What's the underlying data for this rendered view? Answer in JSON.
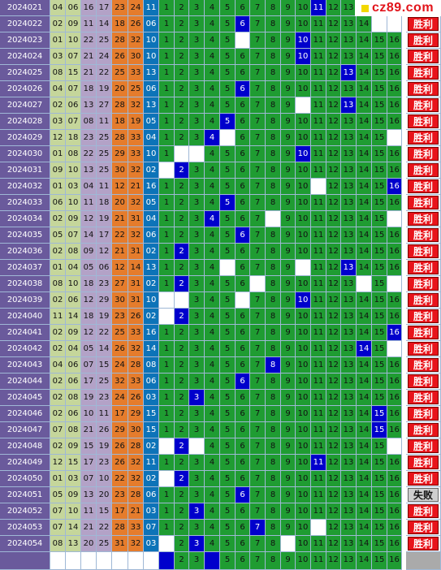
{
  "colors": {
    "period_bg": "#6a5a9c",
    "red_col_green": "#c5d69b",
    "red_col_purple": "#b3a2c7",
    "red_col_orange": "#e57c2c",
    "blue_col": "#0d73b8",
    "grid_green": "#1f9c32",
    "hit_blue": "#0000cc",
    "win_red": "#e8141b",
    "logo_red": "#e2141b"
  },
  "logo": {
    "text": "cz89.com",
    "icon": "yellow-square-icon"
  },
  "grid_labels": [
    "1",
    "2",
    "3",
    "4",
    "5",
    "6",
    "7",
    "8",
    "9",
    "10",
    "11",
    "12",
    "13",
    "14",
    "15",
    "16"
  ],
  "rows": [
    {
      "period": "2024021",
      "reds": [
        "04",
        "06",
        "16",
        "17",
        "23",
        "24"
      ],
      "blue": "11",
      "blanks": [],
      "pred": null,
      "result": null
    },
    {
      "period": "2024022",
      "reds": [
        "02",
        "09",
        "11",
        "14",
        "18",
        "26"
      ],
      "blue": "06",
      "blanks": [
        15,
        16
      ],
      "pred": null,
      "result": "胜利"
    },
    {
      "period": "2024023",
      "reds": [
        "01",
        "10",
        "22",
        "25",
        "28",
        "32"
      ],
      "blue": "10",
      "blanks": [
        6
      ],
      "pred": null,
      "result": "胜利"
    },
    {
      "period": "2024024",
      "reds": [
        "03",
        "07",
        "21",
        "24",
        "26",
        "30"
      ],
      "blue": "10",
      "blanks": [],
      "pred": null,
      "result": "胜利"
    },
    {
      "period": "2024025",
      "reds": [
        "08",
        "15",
        "21",
        "22",
        "25",
        "33"
      ],
      "blue": "13",
      "blanks": [],
      "pred": null,
      "result": "胜利"
    },
    {
      "period": "2024026",
      "reds": [
        "04",
        "07",
        "18",
        "19",
        "20",
        "25"
      ],
      "blue": "06",
      "blanks": [],
      "pred": null,
      "result": "胜利"
    },
    {
      "period": "2024027",
      "reds": [
        "02",
        "06",
        "13",
        "27",
        "28",
        "32"
      ],
      "blue": "13",
      "blanks": [
        10
      ],
      "pred": null,
      "result": "胜利"
    },
    {
      "period": "2024028",
      "reds": [
        "03",
        "07",
        "08",
        "11",
        "18",
        "19"
      ],
      "blue": "05",
      "blanks": [],
      "pred": null,
      "result": "胜利"
    },
    {
      "period": "2024029",
      "reds": [
        "12",
        "18",
        "23",
        "25",
        "28",
        "33"
      ],
      "blue": "04",
      "blanks": [
        5,
        16
      ],
      "pred": null,
      "result": "胜利"
    },
    {
      "period": "2024030",
      "reds": [
        "01",
        "08",
        "22",
        "25",
        "29",
        "33"
      ],
      "blue": "10",
      "blanks": [
        2,
        3
      ],
      "pred": null,
      "result": "胜利"
    },
    {
      "period": "2024031",
      "reds": [
        "09",
        "10",
        "13",
        "25",
        "30",
        "32"
      ],
      "blue": "02",
      "blanks": [
        1
      ],
      "pred": null,
      "result": "胜利"
    },
    {
      "period": "2024032",
      "reds": [
        "01",
        "03",
        "04",
        "11",
        "12",
        "21"
      ],
      "blue": "16",
      "blanks": [
        11
      ],
      "pred": null,
      "result": "胜利"
    },
    {
      "period": "2024033",
      "reds": [
        "06",
        "10",
        "11",
        "18",
        "20",
        "32"
      ],
      "blue": "05",
      "blanks": [],
      "pred": null,
      "result": "胜利"
    },
    {
      "period": "2024034",
      "reds": [
        "02",
        "09",
        "12",
        "19",
        "21",
        "31"
      ],
      "blue": "04",
      "blanks": [
        8,
        16
      ],
      "pred": null,
      "result": "胜利"
    },
    {
      "period": "2024035",
      "reds": [
        "05",
        "07",
        "14",
        "17",
        "22",
        "32"
      ],
      "blue": "06",
      "blanks": [],
      "pred": null,
      "result": "胜利"
    },
    {
      "period": "2024036",
      "reds": [
        "02",
        "08",
        "09",
        "12",
        "21",
        "31"
      ],
      "blue": "02",
      "blanks": [],
      "pred": null,
      "result": "胜利"
    },
    {
      "period": "2024037",
      "reds": [
        "01",
        "04",
        "05",
        "06",
        "12",
        "14"
      ],
      "blue": "13",
      "blanks": [
        5,
        10
      ],
      "pred": null,
      "result": "胜利"
    },
    {
      "period": "2024038",
      "reds": [
        "08",
        "10",
        "18",
        "23",
        "27",
        "31"
      ],
      "blue": "02",
      "blanks": [
        7,
        14,
        16
      ],
      "pred": null,
      "result": "胜利"
    },
    {
      "period": "2024039",
      "reds": [
        "02",
        "06",
        "12",
        "29",
        "30",
        "31"
      ],
      "blue": "10",
      "blanks": [
        1,
        2,
        6
      ],
      "pred": null,
      "result": "胜利"
    },
    {
      "period": "2024040",
      "reds": [
        "11",
        "14",
        "18",
        "19",
        "23",
        "26"
      ],
      "blue": "02",
      "blanks": [
        1
      ],
      "pred": null,
      "result": "胜利"
    },
    {
      "period": "2024041",
      "reds": [
        "02",
        "09",
        "12",
        "22",
        "25",
        "33"
      ],
      "blue": "16",
      "blanks": [],
      "pred": null,
      "result": "胜利"
    },
    {
      "period": "2024042",
      "reds": [
        "02",
        "04",
        "05",
        "14",
        "26",
        "32"
      ],
      "blue": "14",
      "blanks": [
        16
      ],
      "pred": null,
      "result": "胜利"
    },
    {
      "period": "2024043",
      "reds": [
        "04",
        "06",
        "07",
        "15",
        "24",
        "28"
      ],
      "blue": "08",
      "blanks": [],
      "pred": null,
      "result": "胜利"
    },
    {
      "period": "2024044",
      "reds": [
        "02",
        "06",
        "17",
        "25",
        "32",
        "33"
      ],
      "blue": "06",
      "blanks": [],
      "pred": null,
      "result": "胜利"
    },
    {
      "period": "2024045",
      "reds": [
        "02",
        "08",
        "19",
        "23",
        "24",
        "26"
      ],
      "blue": "03",
      "blanks": [],
      "pred": null,
      "result": "胜利"
    },
    {
      "period": "2024046",
      "reds": [
        "02",
        "06",
        "10",
        "11",
        "17",
        "29"
      ],
      "blue": "15",
      "blanks": [],
      "pred": null,
      "result": "胜利"
    },
    {
      "period": "2024047",
      "reds": [
        "07",
        "08",
        "21",
        "26",
        "29",
        "30"
      ],
      "blue": "15",
      "blanks": [],
      "pred": null,
      "result": "胜利"
    },
    {
      "period": "2024048",
      "reds": [
        "02",
        "09",
        "15",
        "19",
        "26",
        "28"
      ],
      "blue": "02",
      "blanks": [
        1,
        3,
        16
      ],
      "pred": null,
      "result": "胜利"
    },
    {
      "period": "2024049",
      "reds": [
        "12",
        "15",
        "17",
        "23",
        "26",
        "32"
      ],
      "blue": "11",
      "blanks": [],
      "pred": null,
      "result": "胜利"
    },
    {
      "period": "2024050",
      "reds": [
        "01",
        "03",
        "07",
        "10",
        "22",
        "32"
      ],
      "blue": "02",
      "blanks": [
        1
      ],
      "pred": null,
      "result": "胜利"
    },
    {
      "period": "2024051",
      "reds": [
        "05",
        "09",
        "13",
        "20",
        "23",
        "28"
      ],
      "blue": "06",
      "blanks": [
        6
      ],
      "pred": null,
      "result": "失败"
    },
    {
      "period": "2024052",
      "reds": [
        "07",
        "10",
        "11",
        "15",
        "17",
        "21"
      ],
      "blue": "03",
      "blanks": [],
      "pred": null,
      "result": "胜利"
    },
    {
      "period": "2024053",
      "reds": [
        "07",
        "14",
        "21",
        "22",
        "28",
        "33"
      ],
      "blue": "07",
      "blanks": [
        11
      ],
      "pred": null,
      "result": "胜利"
    },
    {
      "period": "2024054",
      "reds": [
        "08",
        "13",
        "20",
        "25",
        "31",
        "32"
      ],
      "blue": "03",
      "blanks": [
        1,
        9
      ],
      "pred": null,
      "result": "胜利"
    }
  ],
  "footer": {
    "hits": [
      1,
      4
    ],
    "blanks": [],
    "labels": [
      "2",
      "3",
      "5",
      "6",
      "7",
      "8",
      "9",
      "10",
      "11",
      "12",
      "13",
      "14",
      "15",
      "16"
    ]
  }
}
